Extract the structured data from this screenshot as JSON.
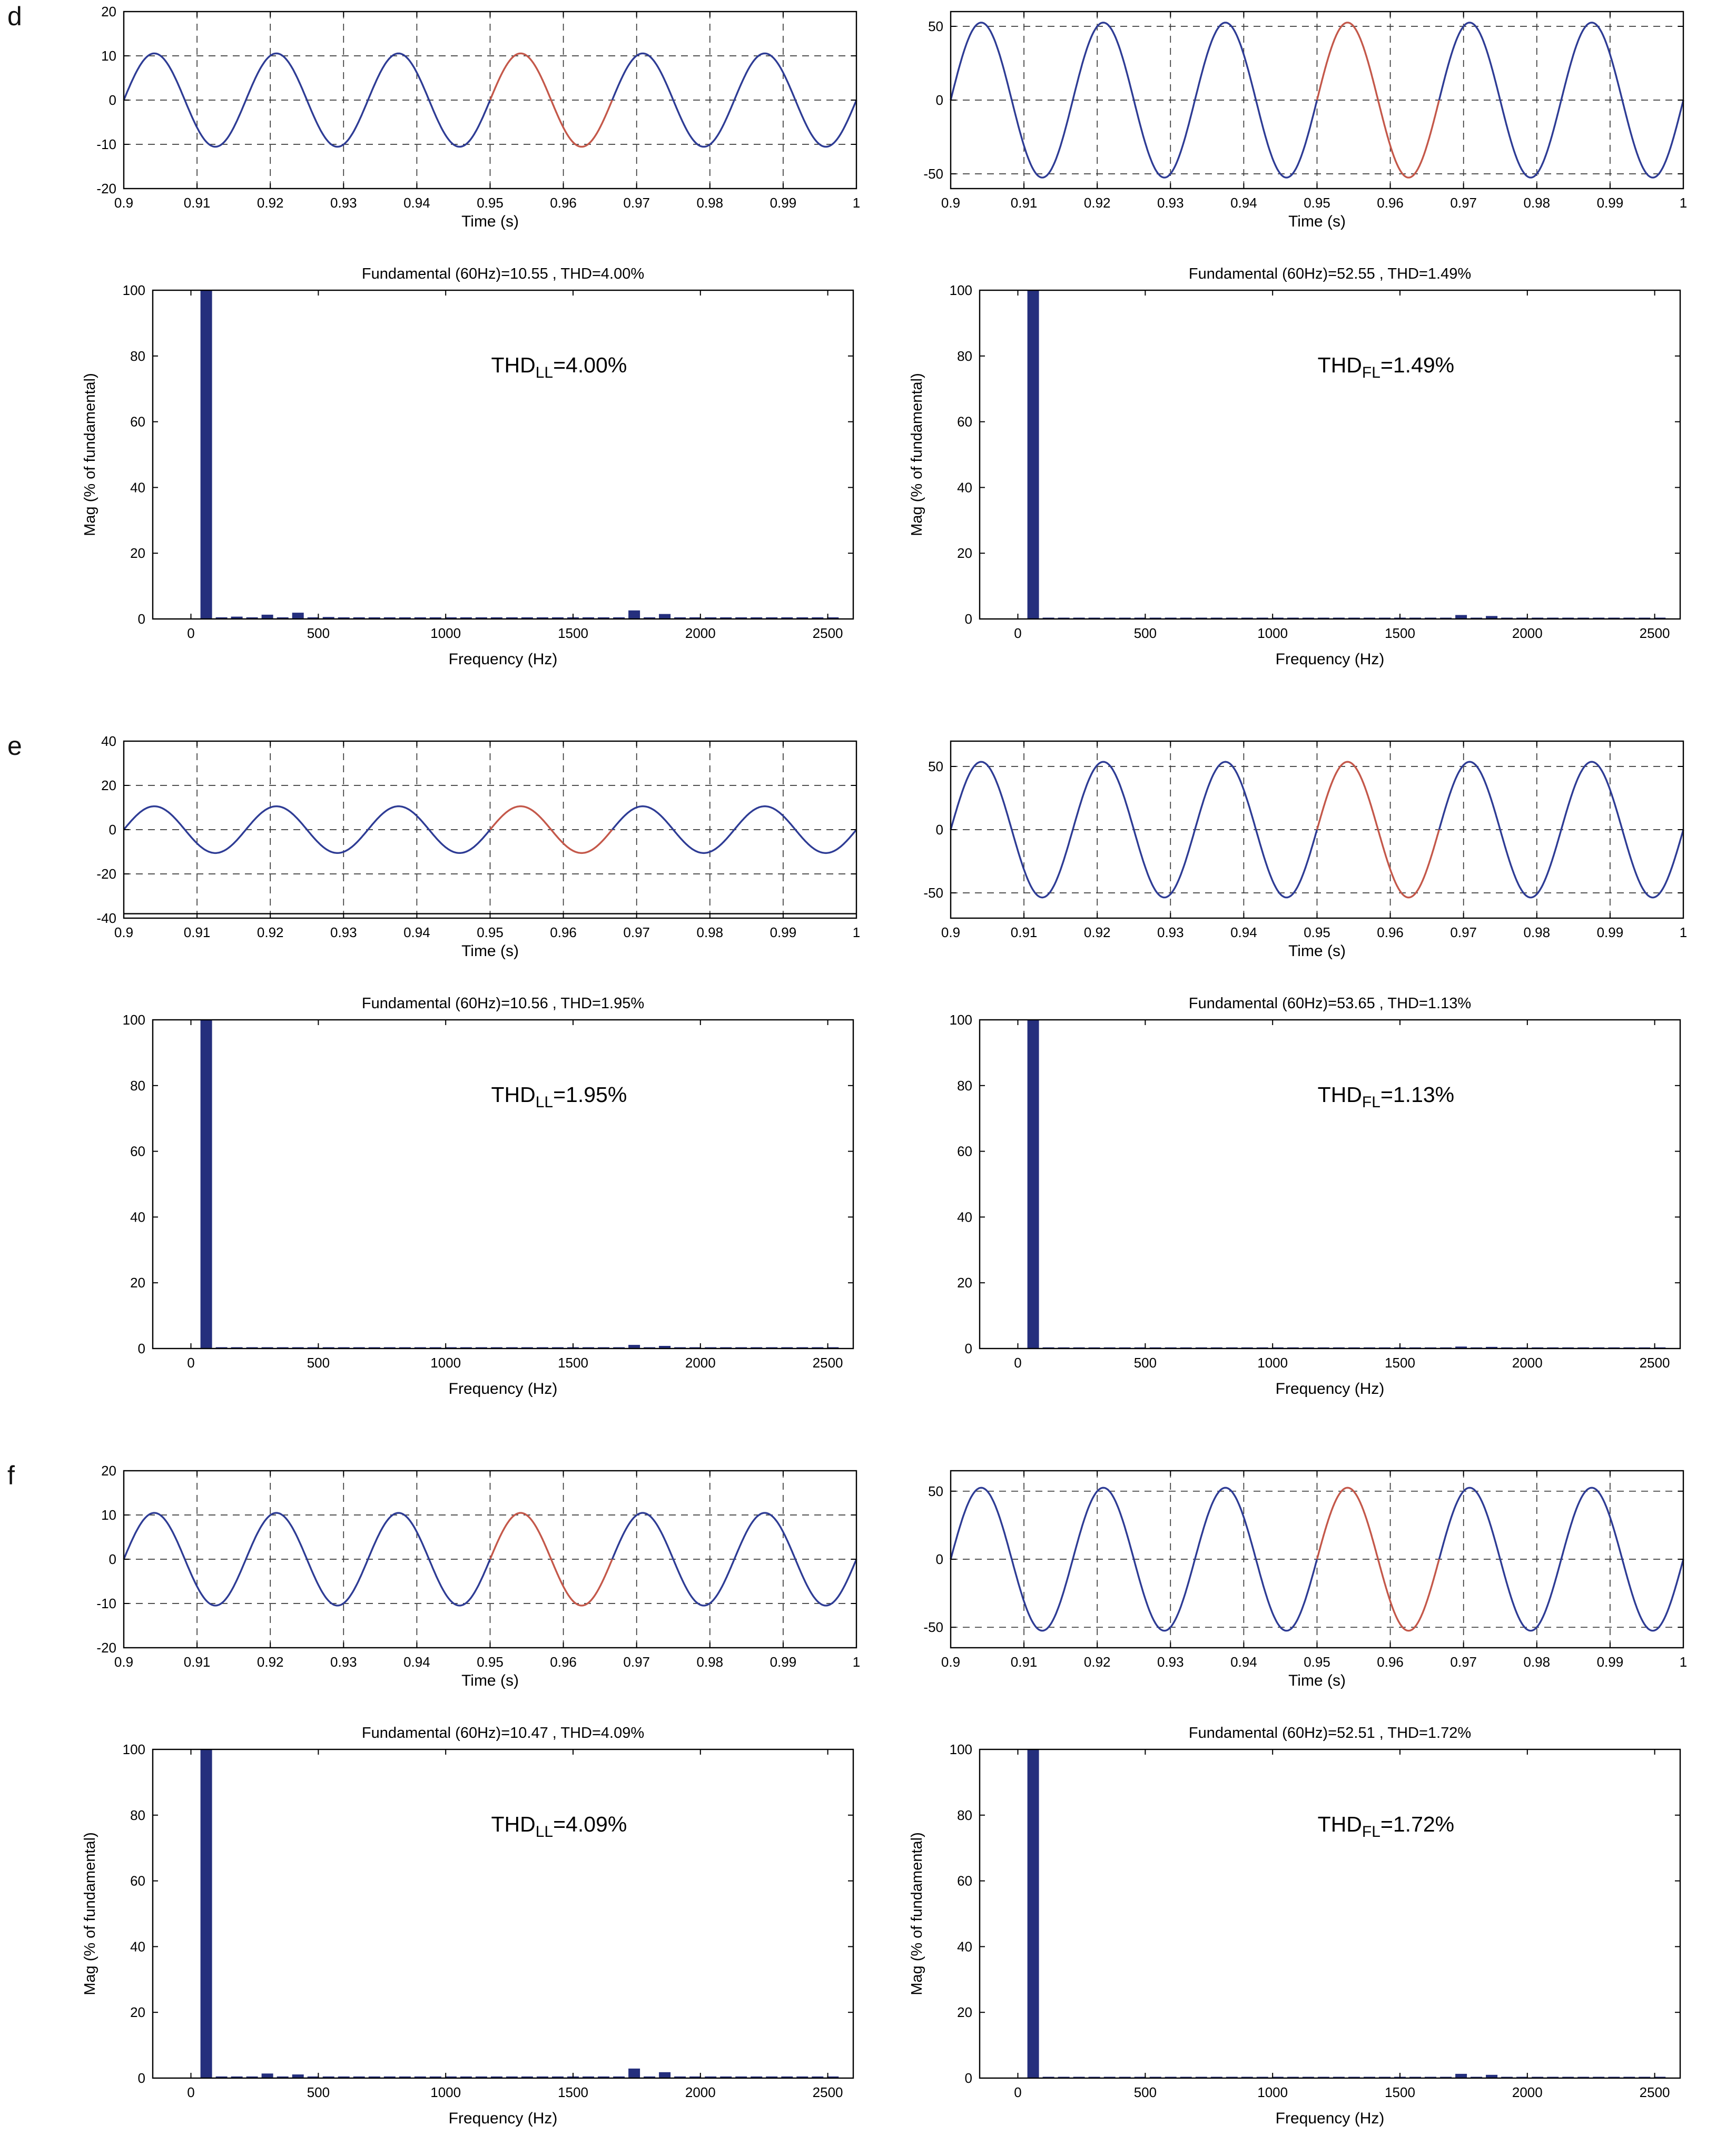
{
  "chart_data": {
    "style": {
      "line_color": "#2e3c95",
      "highlight_color": "#c4584a",
      "bar_color": "#252f7d",
      "grid_color": "#3a3a3a",
      "axis_color": "#000000",
      "background": "#ffffff"
    },
    "panels": [
      {
        "label": "d",
        "time": [
          {
            "type": "line",
            "xlabel": "Time (s)",
            "xlim": [
              0.9,
              1
            ],
            "xticks": [
              0.9,
              0.91,
              0.92,
              0.93,
              0.94,
              0.95,
              0.96,
              0.97,
              0.98,
              0.99,
              1
            ],
            "ylim": [
              -20,
              20
            ],
            "yticks": [
              -20,
              -10,
              0,
              10,
              20
            ],
            "frequency_hz": 60,
            "amplitude": 10.55,
            "highlight_start": 0.95,
            "grid": true
          },
          {
            "type": "line",
            "xlabel": "Time (s)",
            "xlim": [
              0.9,
              1
            ],
            "xticks": [
              0.9,
              0.91,
              0.92,
              0.93,
              0.94,
              0.95,
              0.96,
              0.97,
              0.98,
              0.99,
              1
            ],
            "ylim": [
              -60,
              60
            ],
            "yticks": [
              -50,
              0,
              50
            ],
            "frequency_hz": 60,
            "amplitude": 52.55,
            "highlight_start": 0.95,
            "grid": true
          }
        ],
        "spectra": [
          {
            "type": "bar",
            "title": "Fundamental (60Hz)=10.55 , THD=4.00%",
            "annotation": {
              "base": "THD",
              "sub": "LL",
              "rest": "=4.00%",
              "x_frac": 0.58,
              "y": 75
            },
            "xlabel": "Frequency (Hz)",
            "ylabel": "Mag (% of fundamental)",
            "xlim": [
              -150,
              2600
            ],
            "xticks": [
              0,
              500,
              1000,
              1500,
              2000,
              2500
            ],
            "ylim": [
              0,
              100
            ],
            "yticks": [
              0,
              20,
              40,
              60,
              80,
              100
            ],
            "bars": [
              [
                60,
                100
              ],
              [
                180,
                0.7
              ],
              [
                300,
                1.3
              ],
              [
                420,
                1.9
              ],
              [
                540,
                0.6
              ],
              [
                1740,
                2.6
              ],
              [
                1860,
                1.5
              ]
            ],
            "noise_floor": 0.5
          },
          {
            "type": "bar",
            "title": "Fundamental (60Hz)=52.55 , THD=1.49%",
            "annotation": {
              "base": "THD",
              "sub": "FL",
              "rest": "=1.49%",
              "x_frac": 0.58,
              "y": 75
            },
            "xlabel": "Frequency (Hz)",
            "ylabel": "Mag (% of fundamental)",
            "xlim": [
              -150,
              2600
            ],
            "xticks": [
              0,
              500,
              1000,
              1500,
              2000,
              2500
            ],
            "ylim": [
              0,
              100
            ],
            "yticks": [
              0,
              20,
              40,
              60,
              80,
              100
            ],
            "bars": [
              [
                60,
                100
              ],
              [
                1740,
                1.2
              ],
              [
                1860,
                0.9
              ]
            ],
            "noise_floor": 0.4
          }
        ]
      },
      {
        "label": "e",
        "time": [
          {
            "type": "line",
            "xlabel": "Time (s)",
            "xlim": [
              0.9,
              1
            ],
            "xticks": [
              0.9,
              0.91,
              0.92,
              0.93,
              0.94,
              0.95,
              0.96,
              0.97,
              0.98,
              0.99,
              1
            ],
            "ylim": [
              -40,
              40
            ],
            "yticks": [
              -40,
              -20,
              0,
              20,
              40
            ],
            "frequency_hz": 60,
            "amplitude": 10.56,
            "highlight_start": 0.95,
            "grid": true,
            "flat_line": -38
          },
          {
            "type": "line",
            "xlabel": "Time (s)",
            "xlim": [
              0.9,
              1
            ],
            "xticks": [
              0.9,
              0.91,
              0.92,
              0.93,
              0.94,
              0.95,
              0.96,
              0.97,
              0.98,
              0.99,
              1
            ],
            "ylim": [
              -70,
              70
            ],
            "yticks": [
              -50,
              0,
              50
            ],
            "frequency_hz": 60,
            "amplitude": 53.65,
            "highlight_start": 0.95,
            "grid": true
          }
        ],
        "spectra": [
          {
            "type": "bar",
            "title": "Fundamental (60Hz)=10.56 , THD=1.95%",
            "annotation": {
              "base": "THD",
              "sub": "LL",
              "rest": "=1.95%",
              "x_frac": 0.58,
              "y": 75
            },
            "xlabel": "Frequency (Hz)",
            "ylabel": "",
            "xlim": [
              -150,
              2600
            ],
            "xticks": [
              0,
              500,
              1000,
              1500,
              2000,
              2500
            ],
            "ylim": [
              0,
              100
            ],
            "yticks": [
              0,
              20,
              40,
              60,
              80,
              100
            ],
            "bars": [
              [
                60,
                100
              ],
              [
                1740,
                1.1
              ],
              [
                1860,
                0.8
              ]
            ],
            "noise_floor": 0.4
          },
          {
            "type": "bar",
            "title": "Fundamental (60Hz)=53.65 , THD=1.13%",
            "annotation": {
              "base": "THD",
              "sub": "FL",
              "rest": "=1.13%",
              "x_frac": 0.58,
              "y": 75
            },
            "xlabel": "Frequency (Hz)",
            "ylabel": "",
            "xlim": [
              -150,
              2600
            ],
            "xticks": [
              0,
              500,
              1000,
              1500,
              2000,
              2500
            ],
            "ylim": [
              0,
              100
            ],
            "yticks": [
              0,
              20,
              40,
              60,
              80,
              100
            ],
            "bars": [
              [
                60,
                100
              ],
              [
                1740,
                0.6
              ],
              [
                1860,
                0.5
              ]
            ],
            "noise_floor": 0.35
          }
        ]
      },
      {
        "label": "f",
        "time": [
          {
            "type": "line",
            "xlabel": "Time (s)",
            "xlim": [
              0.9,
              1
            ],
            "xticks": [
              0.9,
              0.91,
              0.92,
              0.93,
              0.94,
              0.95,
              0.96,
              0.97,
              0.98,
              0.99,
              1
            ],
            "ylim": [
              -20,
              20
            ],
            "yticks": [
              -20,
              -10,
              0,
              10,
              20
            ],
            "frequency_hz": 60,
            "amplitude": 10.47,
            "highlight_start": 0.95,
            "grid": true
          },
          {
            "type": "line",
            "xlabel": "Time (s)",
            "xlim": [
              0.9,
              1
            ],
            "xticks": [
              0.9,
              0.91,
              0.92,
              0.93,
              0.94,
              0.95,
              0.96,
              0.97,
              0.98,
              0.99,
              1
            ],
            "ylim": [
              -65,
              65
            ],
            "yticks": [
              -50,
              0,
              50
            ],
            "frequency_hz": 60,
            "amplitude": 52.51,
            "highlight_start": 0.95,
            "grid": true
          }
        ],
        "spectra": [
          {
            "type": "bar",
            "title": "Fundamental (60Hz)=10.47 , THD=4.09%",
            "annotation": {
              "base": "THD",
              "sub": "LL",
              "rest": "=4.09%",
              "x_frac": 0.58,
              "y": 75
            },
            "xlabel": "Frequency (Hz)",
            "ylabel": "Mag (% of fundamental)",
            "xlim": [
              -150,
              2600
            ],
            "xticks": [
              0,
              500,
              1000,
              1500,
              2000,
              2500
            ],
            "ylim": [
              0,
              100
            ],
            "yticks": [
              0,
              20,
              40,
              60,
              80,
              100
            ],
            "bars": [
              [
                60,
                100
              ],
              [
                300,
                1.4
              ],
              [
                420,
                1.1
              ],
              [
                540,
                0.5
              ],
              [
                1740,
                2.9
              ],
              [
                1860,
                1.8
              ]
            ],
            "noise_floor": 0.5
          },
          {
            "type": "bar",
            "title": "Fundamental (60Hz)=52.51 , THD=1.72%",
            "annotation": {
              "base": "THD",
              "sub": "FL",
              "rest": "=1.72%",
              "x_frac": 0.58,
              "y": 75
            },
            "xlabel": "Frequency (Hz)",
            "ylabel": "Mag (% of fundamental)",
            "xlim": [
              -150,
              2600
            ],
            "xticks": [
              0,
              500,
              1000,
              1500,
              2000,
              2500
            ],
            "ylim": [
              0,
              100
            ],
            "yticks": [
              0,
              20,
              40,
              60,
              80,
              100
            ],
            "bars": [
              [
                60,
                100
              ],
              [
                1740,
                1.3
              ],
              [
                1860,
                1.0
              ]
            ],
            "noise_floor": 0.4
          }
        ]
      }
    ]
  }
}
